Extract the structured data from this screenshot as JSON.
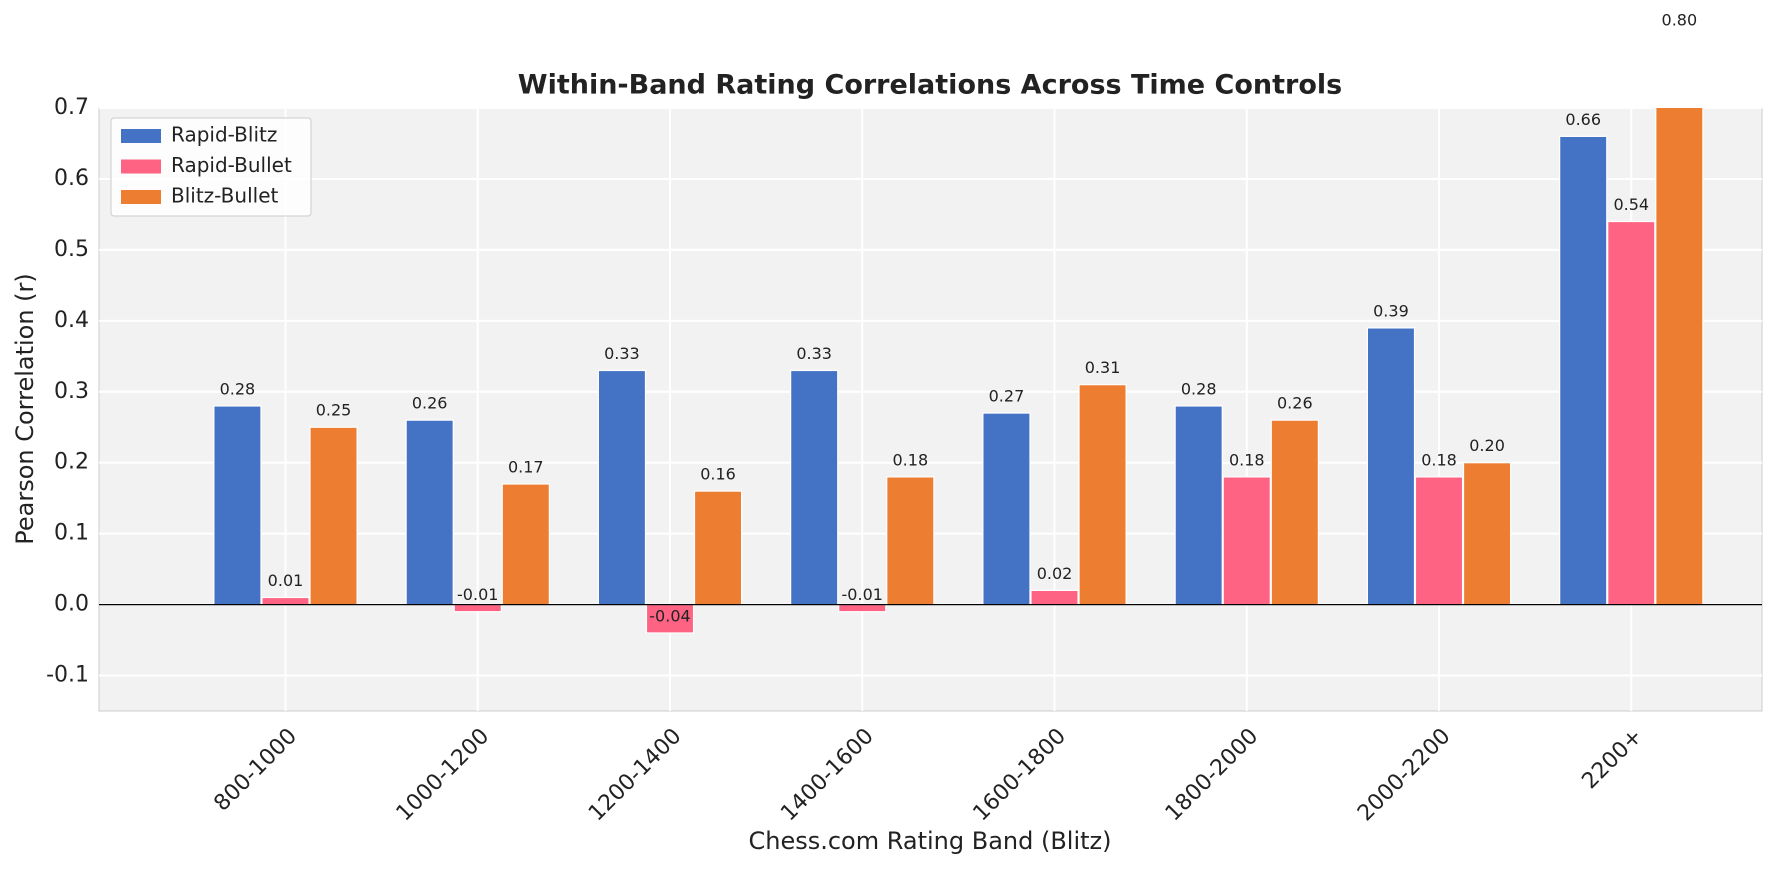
{
  "chart_data": {
    "type": "bar",
    "title": "Within-Band Rating Correlations Across Time Controls",
    "x_label": "Chess.com Rating Band (Blitz)",
    "y_label": "Pearson Correlation (r)",
    "categories": [
      "800-1000",
      "1000-1200",
      "1200-1400",
      "1400-1600",
      "1600-1800",
      "1800-2000",
      "2000-2200",
      "2200+"
    ],
    "series": [
      {
        "name": "Rapid-Blitz",
        "color": "#4472c4",
        "values": [
          0.28,
          0.26,
          0.33,
          0.33,
          0.27,
          0.28,
          0.39,
          0.66
        ],
        "value_labels": [
          "0.28",
          "0.26",
          "0.33",
          "0.33",
          "0.27",
          "0.28",
          "0.39",
          "0.66"
        ]
      },
      {
        "name": "Rapid-Bullet",
        "color": "#ff6384",
        "values": [
          0.01,
          -0.01,
          -0.04,
          -0.01,
          0.02,
          0.18,
          0.18,
          0.54
        ],
        "value_labels": [
          "0.01",
          "-0.01",
          "-0.04",
          "-0.01",
          "0.02",
          "0.18",
          "0.18",
          "0.54"
        ]
      },
      {
        "name": "Blitz-Bullet",
        "color": "#ed7d31",
        "values": [
          0.25,
          0.17,
          0.16,
          0.18,
          0.31,
          0.26,
          0.2,
          0.8
        ],
        "value_labels": [
          "0.25",
          "0.17",
          "0.16",
          "0.18",
          "0.31",
          "0.26",
          "0.20",
          "0.80"
        ]
      }
    ],
    "ylim": [
      -0.15,
      0.7
    ],
    "yticks": [
      -0.1,
      {
        "value": 0,
        "label": "0.0"
      },
      0.1,
      0.2,
      0.3,
      0.4,
      0.5,
      0.6,
      0.7
    ],
    "grid": true,
    "legend": "upper-left"
  }
}
